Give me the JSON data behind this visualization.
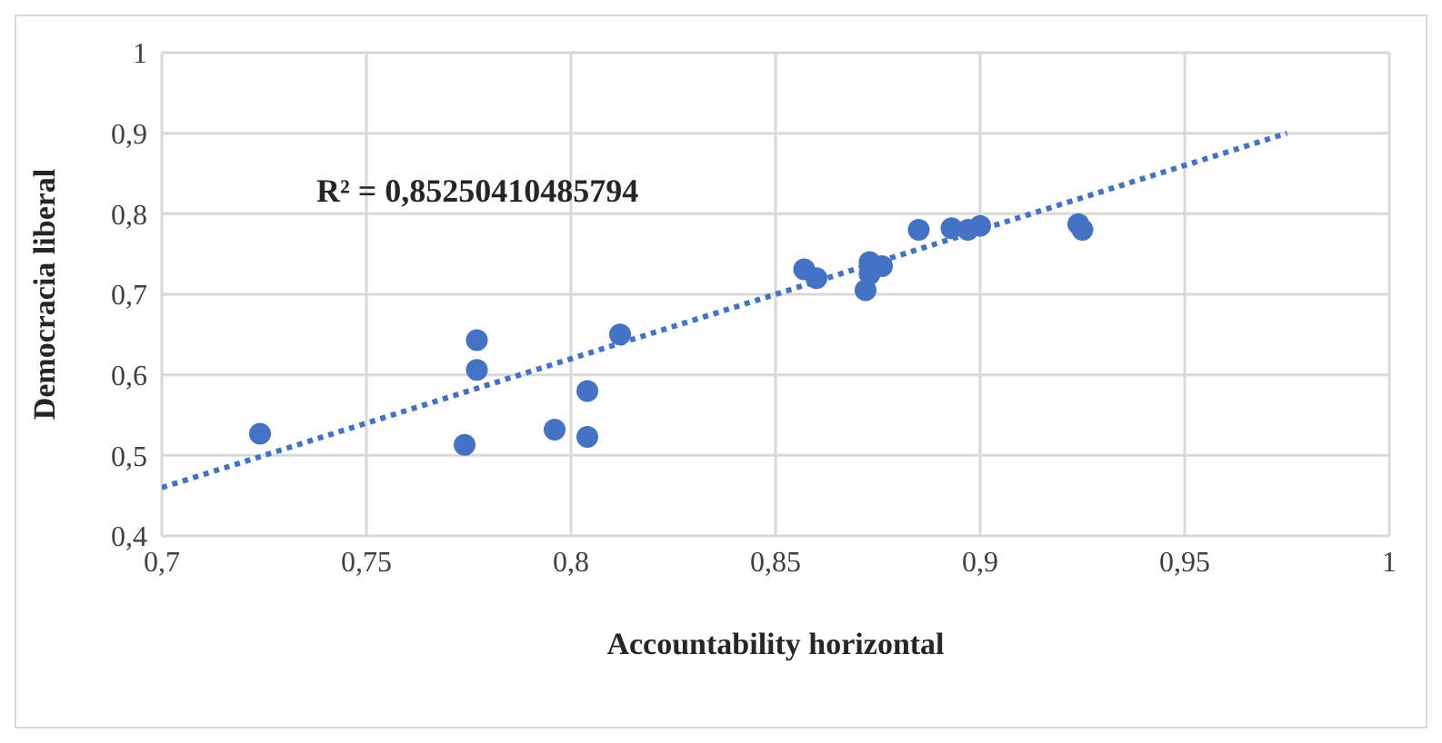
{
  "chart_data": {
    "type": "scatter",
    "xlabel": "Accountability horizontal",
    "ylabel": "Democracia liberal",
    "annotations": [
      "R² = 0,85250410485794"
    ],
    "series": [
      {
        "color": "#4472c4",
        "marker": "circle",
        "x": [
          0.724,
          0.777,
          0.777,
          0.774,
          0.796,
          0.804,
          0.804,
          0.812,
          0.857,
          0.86,
          0.873,
          0.873,
          0.872,
          0.876,
          0.885,
          0.893,
          0.9,
          0.897,
          0.924,
          0.925
        ],
        "values": [
          0.527,
          0.643,
          0.606,
          0.513,
          0.532,
          0.58,
          0.523,
          0.65,
          0.731,
          0.72,
          0.74,
          0.725,
          0.705,
          0.735,
          0.78,
          0.782,
          0.785,
          0.78,
          0.787,
          0.78
        ]
      },
      {
        "type": "line",
        "color": "#4472c4",
        "line_style": "dotted",
        "x": [
          0.7,
          0.975
        ],
        "values": [
          0.46,
          0.9
        ]
      }
    ],
    "xlim": [
      0.7,
      1
    ],
    "xticks": [
      {
        "value": 0.7,
        "label": "0,7"
      },
      {
        "value": 0.75,
        "label": "0,75"
      },
      {
        "value": 0.8,
        "label": "0,8"
      },
      {
        "value": 0.85,
        "label": "0,85"
      },
      {
        "value": 0.9,
        "label": "0,9"
      },
      {
        "value": 0.95,
        "label": "0,95"
      },
      {
        "value": 1,
        "label": "1"
      }
    ],
    "ylim": [
      0.4,
      1
    ],
    "yticks": [
      {
        "value": 0.4,
        "label": "0,4"
      },
      {
        "value": 0.5,
        "label": "0,5"
      },
      {
        "value": 0.6,
        "label": "0,6"
      },
      {
        "value": 0.7,
        "label": "0,7"
      },
      {
        "value": 0.8,
        "label": "0,8"
      },
      {
        "value": 0.9,
        "label": "0,9"
      },
      {
        "value": 1,
        "label": "1"
      }
    ],
    "grid": true
  }
}
